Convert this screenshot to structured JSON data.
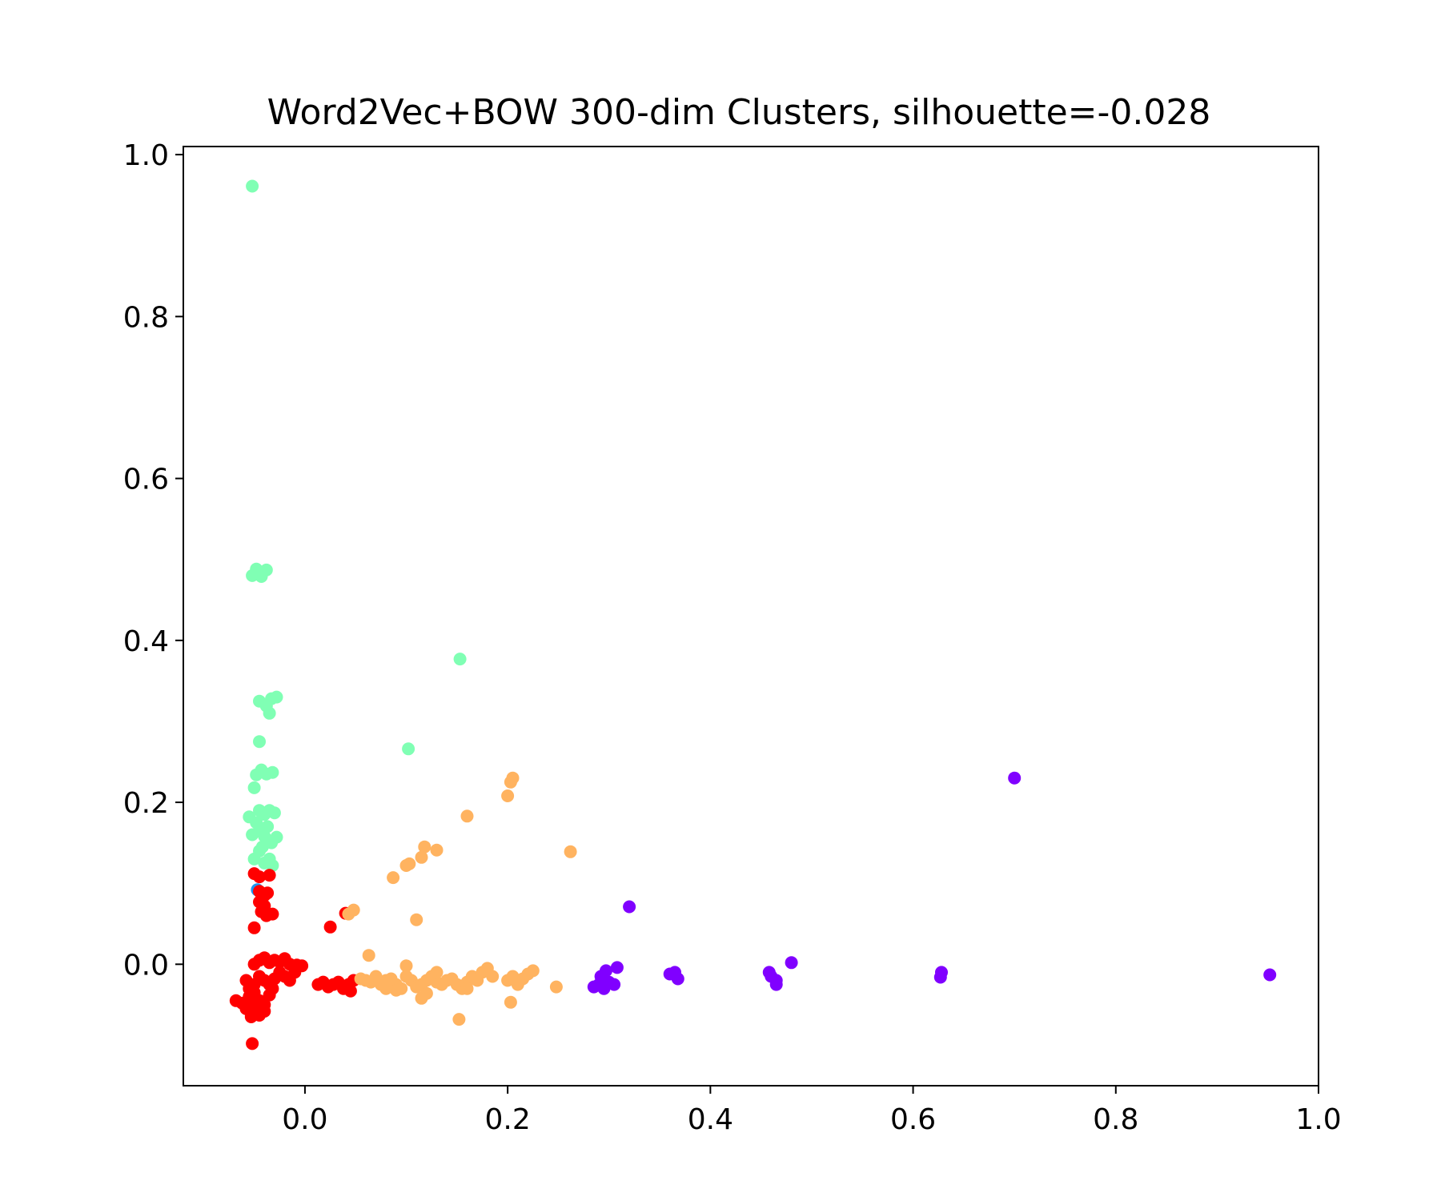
{
  "chart_data": {
    "type": "scatter",
    "title": "Word2Vec+BOW 300-dim Clusters, silhouette=-0.028",
    "xlabel": "",
    "ylabel": "",
    "xlim": [
      -0.12,
      1.0
    ],
    "ylim": [
      -0.15,
      1.01
    ],
    "xticks": [
      0.0,
      0.2,
      0.4,
      0.6,
      0.8,
      1.0
    ],
    "xtick_labels": [
      "0.0",
      "0.2",
      "0.4",
      "0.6",
      "0.8",
      "1.0"
    ],
    "yticks": [
      0.0,
      0.2,
      0.4,
      0.6,
      0.8,
      1.0
    ],
    "ytick_labels": [
      "0.0",
      "0.2",
      "0.4",
      "0.6",
      "0.8",
      "1.0"
    ],
    "grid": false,
    "legend": "none",
    "series": [
      {
        "color": "#80ffb4",
        "points": [
          [
            -0.052,
            0.961
          ],
          [
            -0.052,
            0.48
          ],
          [
            -0.048,
            0.488
          ],
          [
            -0.043,
            0.479
          ],
          [
            -0.038,
            0.487
          ],
          [
            -0.045,
            0.484
          ],
          [
            0.153,
            0.377
          ],
          [
            -0.045,
            0.325
          ],
          [
            -0.038,
            0.319
          ],
          [
            -0.033,
            0.328
          ],
          [
            -0.028,
            0.33
          ],
          [
            -0.035,
            0.31
          ],
          [
            -0.045,
            0.275
          ],
          [
            0.102,
            0.266
          ],
          [
            -0.048,
            0.234
          ],
          [
            -0.043,
            0.24
          ],
          [
            -0.038,
            0.235
          ],
          [
            -0.032,
            0.237
          ],
          [
            -0.05,
            0.218
          ],
          [
            -0.055,
            0.182
          ],
          [
            -0.048,
            0.175
          ],
          [
            -0.045,
            0.19
          ],
          [
            -0.04,
            0.185
          ],
          [
            -0.035,
            0.19
          ],
          [
            -0.03,
            0.187
          ],
          [
            -0.052,
            0.16
          ],
          [
            -0.045,
            0.165
          ],
          [
            -0.04,
            0.158
          ],
          [
            -0.037,
            0.17
          ],
          [
            -0.033,
            0.15
          ],
          [
            -0.028,
            0.157
          ],
          [
            -0.05,
            0.13
          ],
          [
            -0.045,
            0.14
          ],
          [
            -0.04,
            0.125
          ],
          [
            -0.035,
            0.13
          ],
          [
            -0.032,
            0.122
          ],
          [
            -0.042,
            0.145
          ]
        ]
      },
      {
        "color": "#1996f3",
        "points": [
          [
            -0.047,
            0.092
          ],
          [
            -0.043,
            0.088
          ]
        ]
      },
      {
        "color": "#ff0000",
        "points": [
          [
            -0.05,
            0.112
          ],
          [
            -0.045,
            0.108
          ],
          [
            -0.035,
            0.11
          ],
          [
            -0.045,
            0.09
          ],
          [
            -0.04,
            0.085
          ],
          [
            -0.037,
            0.088
          ],
          [
            -0.045,
            0.077
          ],
          [
            -0.04,
            0.072
          ],
          [
            -0.043,
            0.065
          ],
          [
            -0.038,
            0.06
          ],
          [
            -0.032,
            0.062
          ],
          [
            -0.05,
            0.045
          ],
          [
            0.025,
            0.046
          ],
          [
            0.04,
            0.063
          ],
          [
            -0.05,
            0.0
          ],
          [
            -0.045,
            0.005
          ],
          [
            -0.04,
            0.008
          ],
          [
            -0.035,
            0.002
          ],
          [
            -0.03,
            0.005
          ],
          [
            -0.025,
            0.003
          ],
          [
            -0.02,
            0.007
          ],
          [
            -0.015,
            0.0
          ],
          [
            -0.008,
            -0.001
          ],
          [
            -0.003,
            -0.002
          ],
          [
            -0.058,
            -0.02
          ],
          [
            -0.055,
            -0.03
          ],
          [
            -0.05,
            -0.025
          ],
          [
            -0.045,
            -0.015
          ],
          [
            -0.04,
            -0.02
          ],
          [
            -0.035,
            -0.025
          ],
          [
            -0.03,
            -0.018
          ],
          [
            -0.025,
            -0.01
          ],
          [
            -0.02,
            -0.015
          ],
          [
            -0.015,
            -0.02
          ],
          [
            -0.01,
            -0.01
          ],
          [
            -0.068,
            -0.045
          ],
          [
            -0.062,
            -0.048
          ],
          [
            -0.058,
            -0.055
          ],
          [
            -0.055,
            -0.04
          ],
          [
            -0.05,
            -0.05
          ],
          [
            -0.048,
            -0.06
          ],
          [
            -0.045,
            -0.045
          ],
          [
            -0.04,
            -0.05
          ],
          [
            -0.035,
            -0.038
          ],
          [
            -0.032,
            -0.03
          ],
          [
            -0.053,
            -0.065
          ],
          [
            -0.045,
            -0.063
          ],
          [
            -0.04,
            -0.058
          ],
          [
            -0.05,
            -0.035
          ],
          [
            -0.052,
            -0.098
          ],
          [
            0.013,
            -0.025
          ],
          [
            0.018,
            -0.022
          ],
          [
            0.023,
            -0.028
          ],
          [
            0.028,
            -0.025
          ],
          [
            0.033,
            -0.022
          ],
          [
            0.038,
            -0.03
          ],
          [
            0.043,
            -0.025
          ],
          [
            0.048,
            -0.02
          ],
          [
            0.045,
            -0.033
          ]
        ]
      },
      {
        "color": "#ffb360",
        "points": [
          [
            0.205,
            0.23
          ],
          [
            0.203,
            0.225
          ],
          [
            0.2,
            0.208
          ],
          [
            0.16,
            0.183
          ],
          [
            0.262,
            0.139
          ],
          [
            0.118,
            0.145
          ],
          [
            0.13,
            0.141
          ],
          [
            0.115,
            0.132
          ],
          [
            0.103,
            0.124
          ],
          [
            0.1,
            0.122
          ],
          [
            0.087,
            0.107
          ],
          [
            0.048,
            0.067
          ],
          [
            0.043,
            0.062
          ],
          [
            0.11,
            0.055
          ],
          [
            0.063,
            0.011
          ],
          [
            0.055,
            -0.018
          ],
          [
            0.06,
            -0.02
          ],
          [
            0.065,
            -0.022
          ],
          [
            0.07,
            -0.015
          ],
          [
            0.075,
            -0.025
          ],
          [
            0.08,
            -0.02
          ],
          [
            0.085,
            -0.018
          ],
          [
            0.09,
            -0.025
          ],
          [
            0.095,
            -0.03
          ],
          [
            0.1,
            -0.015
          ],
          [
            0.105,
            -0.02
          ],
          [
            0.11,
            -0.028
          ],
          [
            0.115,
            -0.025
          ],
          [
            0.12,
            -0.02
          ],
          [
            0.125,
            -0.015
          ],
          [
            0.13,
            -0.022
          ],
          [
            0.135,
            -0.025
          ],
          [
            0.14,
            -0.02
          ],
          [
            0.145,
            -0.018
          ],
          [
            0.15,
            -0.025
          ],
          [
            0.155,
            -0.03
          ],
          [
            0.16,
            -0.022
          ],
          [
            0.165,
            -0.015
          ],
          [
            0.17,
            -0.02
          ],
          [
            0.175,
            -0.01
          ],
          [
            0.18,
            -0.005
          ],
          [
            0.185,
            -0.015
          ],
          [
            0.2,
            -0.02
          ],
          [
            0.205,
            -0.015
          ],
          [
            0.21,
            -0.025
          ],
          [
            0.215,
            -0.018
          ],
          [
            0.22,
            -0.012
          ],
          [
            0.225,
            -0.008
          ],
          [
            0.09,
            -0.032
          ],
          [
            0.115,
            -0.042
          ],
          [
            0.12,
            -0.036
          ],
          [
            0.152,
            -0.068
          ],
          [
            0.203,
            -0.047
          ],
          [
            0.248,
            -0.028
          ],
          [
            0.1,
            -0.002
          ],
          [
            0.13,
            -0.01
          ],
          [
            0.16,
            -0.03
          ],
          [
            0.08,
            -0.03
          ]
        ]
      },
      {
        "color": "#8000ff",
        "points": [
          [
            0.7,
            0.23
          ],
          [
            0.32,
            0.071
          ],
          [
            0.48,
            0.002
          ],
          [
            0.308,
            -0.004
          ],
          [
            0.297,
            -0.008
          ],
          [
            0.292,
            -0.015
          ],
          [
            0.295,
            -0.02
          ],
          [
            0.29,
            -0.025
          ],
          [
            0.3,
            -0.022
          ],
          [
            0.285,
            -0.028
          ],
          [
            0.295,
            -0.03
          ],
          [
            0.305,
            -0.025
          ],
          [
            0.36,
            -0.012
          ],
          [
            0.365,
            -0.01
          ],
          [
            0.368,
            -0.018
          ],
          [
            0.458,
            -0.01
          ],
          [
            0.46,
            -0.015
          ],
          [
            0.465,
            -0.02
          ],
          [
            0.465,
            -0.025
          ],
          [
            0.628,
            -0.01
          ],
          [
            0.627,
            -0.016
          ],
          [
            0.952,
            -0.013
          ]
        ]
      }
    ]
  }
}
